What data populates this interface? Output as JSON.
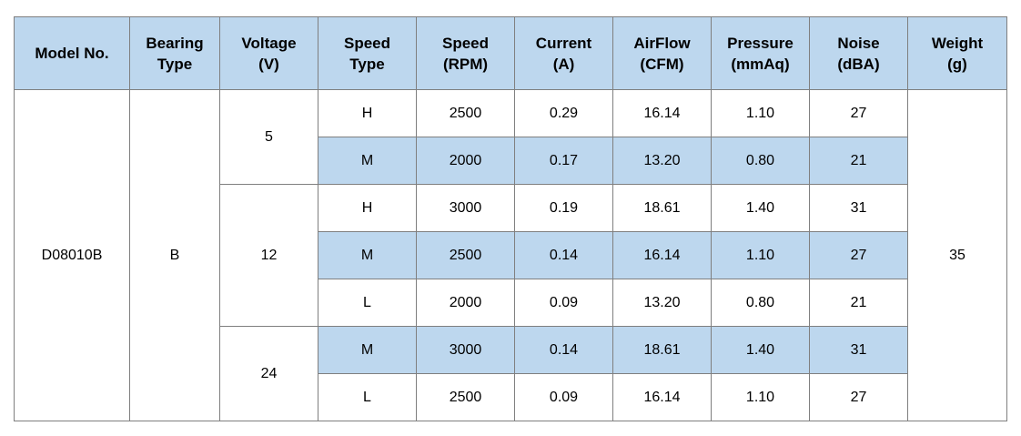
{
  "header": {
    "model": "Model No.",
    "bearing_1": "Bearing",
    "bearing_2": "Type",
    "voltage_1": "Voltage",
    "voltage_2": "(V)",
    "speedtype_1": "Speed",
    "speedtype_2": "Type",
    "rpm_1": "Speed",
    "rpm_2": "(RPM)",
    "current_1": "Current",
    "current_2": "(A)",
    "airflow_1": "AirFlow",
    "airflow_2": "(CFM)",
    "pressure_1": "Pressure",
    "pressure_2": "(mmAq)",
    "noise_1": "Noise",
    "noise_2": "(dBA)",
    "weight_1": "Weight",
    "weight_2": "(g)"
  },
  "model": "D08010B",
  "bearing": "B",
  "weight": "35",
  "voltages": {
    "v5": "5",
    "v12": "12",
    "v24": "24"
  },
  "rows": [
    {
      "speed_type": "H",
      "rpm": "2500",
      "current": "0.29",
      "airflow": "16.14",
      "pressure": "1.10",
      "noise": "27"
    },
    {
      "speed_type": "M",
      "rpm": "2000",
      "current": "0.17",
      "airflow": "13.20",
      "pressure": "0.80",
      "noise": "21"
    },
    {
      "speed_type": "H",
      "rpm": "3000",
      "current": "0.19",
      "airflow": "18.61",
      "pressure": "1.40",
      "noise": "31"
    },
    {
      "speed_type": "M",
      "rpm": "2500",
      "current": "0.14",
      "airflow": "16.14",
      "pressure": "1.10",
      "noise": "27"
    },
    {
      "speed_type": "L",
      "rpm": "2000",
      "current": "0.09",
      "airflow": "13.20",
      "pressure": "0.80",
      "noise": "21"
    },
    {
      "speed_type": "M",
      "rpm": "3000",
      "current": "0.14",
      "airflow": "18.61",
      "pressure": "1.40",
      "noise": "31"
    },
    {
      "speed_type": "L",
      "rpm": "2500",
      "current": "0.09",
      "airflow": "16.14",
      "pressure": "1.10",
      "noise": "27"
    }
  ],
  "colors": {
    "header_fill": "#bdd7ee",
    "shaded_row_fill": "#bdd7ee",
    "border": "#7f7f7f"
  }
}
